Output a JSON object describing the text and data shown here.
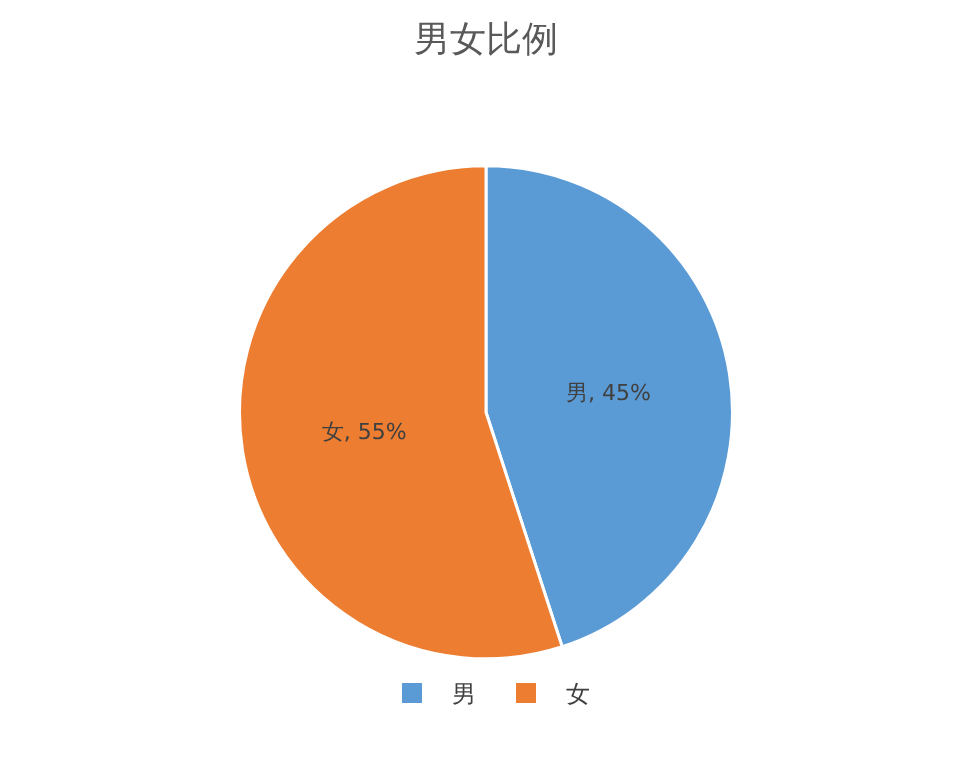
{
  "chart_data": {
    "type": "pie",
    "title": "男女比例",
    "categories": [
      "男",
      "女"
    ],
    "values": [
      45,
      55
    ],
    "colors": [
      "#5b9bd5",
      "#ed7d31"
    ],
    "value_labels": [
      "男, 45%",
      "女, 55%"
    ],
    "legend": "bottom"
  }
}
